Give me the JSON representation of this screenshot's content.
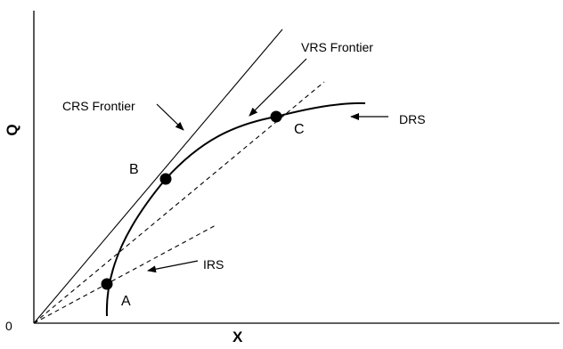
{
  "axes": {
    "x_label": "X",
    "y_label": "Q",
    "origin_label": "0"
  },
  "frontier_labels": {
    "crs": "CRS Frontier",
    "vrs": "VRS Frontier",
    "drs": "DRS",
    "irs": "IRS"
  },
  "points": {
    "a": "A",
    "b": "B",
    "c": "C"
  },
  "colors": {
    "ink": "#000000",
    "background": "#ffffff"
  }
}
